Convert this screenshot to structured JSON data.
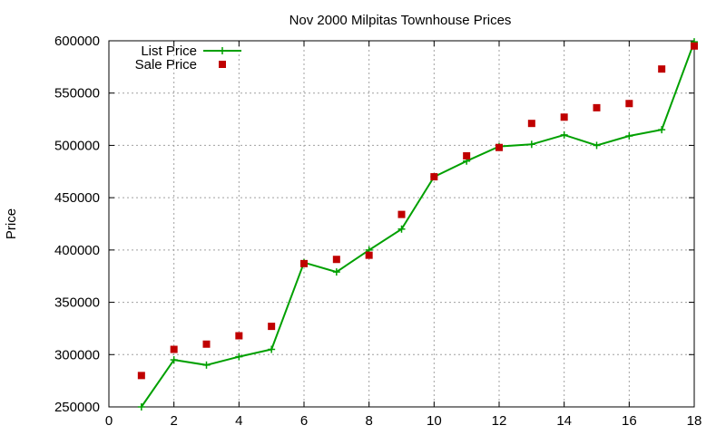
{
  "chart_data": {
    "type": "scatter",
    "title": "Nov 2000 Milpitas Townhouse Prices",
    "xlabel": "",
    "ylabel": "Price",
    "xlim": [
      0,
      18
    ],
    "ylim": [
      250000,
      600000
    ],
    "xticks": [
      0,
      2,
      4,
      6,
      8,
      10,
      12,
      14,
      16,
      18
    ],
    "yticks": [
      250000,
      300000,
      350000,
      400000,
      450000,
      500000,
      550000,
      600000
    ],
    "grid": true,
    "legend_position": "top-left",
    "series": [
      {
        "name": "List Price",
        "style": "line-with-plus-markers",
        "color": "#00a000",
        "x": [
          1,
          2,
          3,
          4,
          5,
          6,
          7,
          8,
          9,
          10,
          11,
          12,
          13,
          14,
          15,
          16,
          17,
          18
        ],
        "values": [
          250000,
          295000,
          290000,
          298000,
          305000,
          388000,
          379000,
          400000,
          420000,
          470000,
          485000,
          499000,
          501000,
          510000,
          500000,
          509000,
          515000,
          599000
        ]
      },
      {
        "name": "Sale Price",
        "style": "square-markers",
        "color": "#c00000",
        "x": [
          1,
          2,
          3,
          4,
          5,
          6,
          7,
          8,
          9,
          10,
          11,
          12,
          13,
          14,
          15,
          16,
          17,
          18
        ],
        "values": [
          280000,
          305000,
          310000,
          318000,
          327000,
          387000,
          391000,
          395000,
          434000,
          470000,
          490000,
          498000,
          521000,
          527000,
          536000,
          540000,
          573000,
          595000
        ]
      }
    ]
  }
}
